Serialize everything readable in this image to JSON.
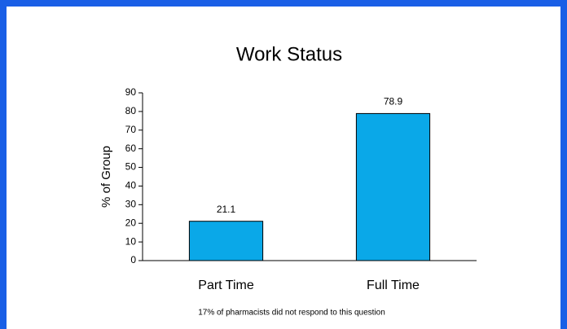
{
  "chart_data": {
    "type": "bar",
    "title": "Work Status",
    "y_label": "% of Group",
    "categories": [
      "Part Time",
      "Full Time"
    ],
    "values": [
      21.1,
      78.9
    ],
    "color": "#0aa8e8",
    "ylim": [
      0,
      90
    ],
    "yticks": [
      0,
      10,
      20,
      30,
      40,
      50,
      60,
      70,
      80,
      90
    ],
    "footnote": "17% of pharmacists did not respond to this question"
  }
}
